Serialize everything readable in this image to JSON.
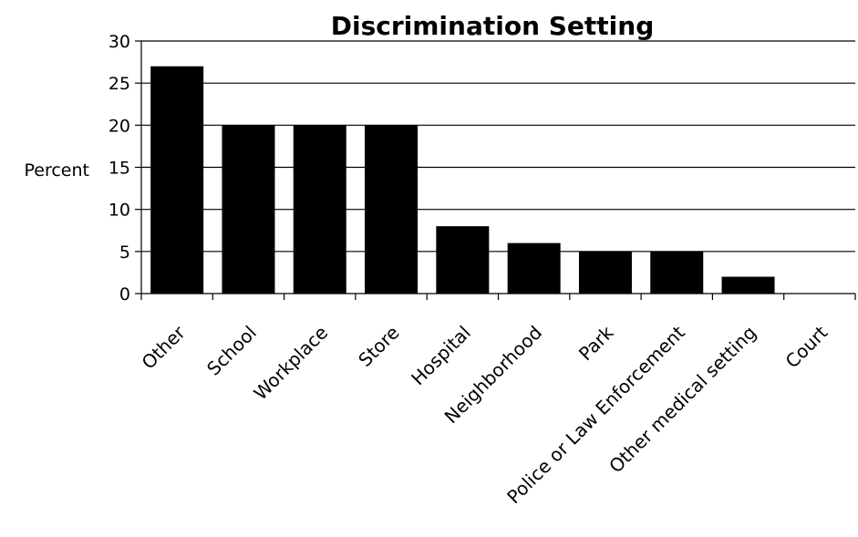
{
  "chart_data": {
    "type": "bar",
    "title": "Discrimination Setting",
    "xlabel": "",
    "ylabel": "Percent",
    "categories": [
      "Other",
      "School",
      "Workplace",
      "Store",
      "Hospital",
      "Neighborhood",
      "Park",
      "Police or Law Enforcement",
      "Other medical setting",
      "Court"
    ],
    "values": [
      27,
      20,
      20,
      20,
      8,
      6,
      5,
      5,
      2,
      0
    ],
    "ylim": [
      0,
      30
    ],
    "yticks": [
      0,
      5,
      10,
      15,
      20,
      25,
      30
    ],
    "grid": true,
    "legend": "none",
    "bar_color": "#000000"
  }
}
